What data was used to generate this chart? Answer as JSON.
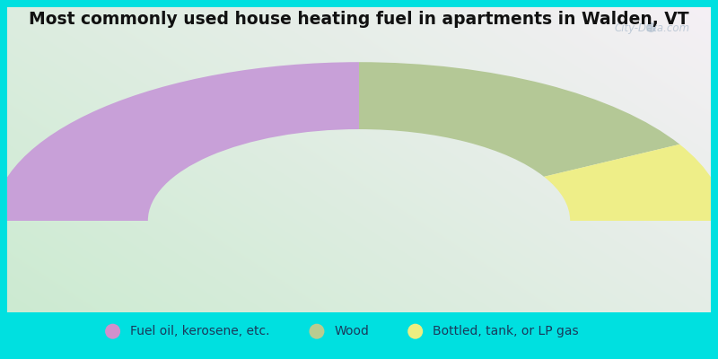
{
  "title": "Most commonly used house heating fuel in apartments in Walden, VT",
  "title_fontsize": 13.5,
  "background_outer": "#00e0e0",
  "segments": [
    {
      "label": "Fuel oil, kerosene, etc.",
      "value": 50,
      "color": "#c8a0d8"
    },
    {
      "label": "Wood",
      "value": 34,
      "color": "#b4c896"
    },
    {
      "label": "Bottled, tank, or LP gas",
      "value": 16,
      "color": "#eeee88"
    }
  ],
  "legend_dot_colors": [
    "#d090cc",
    "#b8cc90",
    "#eeee80"
  ],
  "legend_labels": [
    "Fuel oil, kerosene, etc.",
    "Wood",
    "Bottled, tank, or LP gas"
  ],
  "watermark": "City-Data.com",
  "legend_fontsize": 10
}
